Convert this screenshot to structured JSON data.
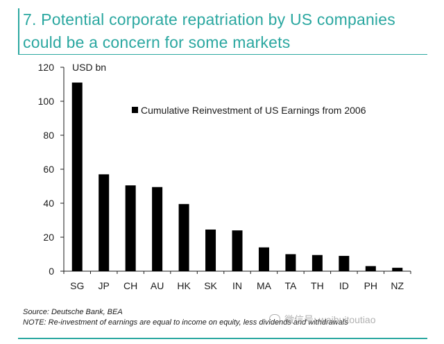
{
  "header": {
    "title_line1": "7. Potential corporate repatriation by US companies",
    "title_line2": "could be a concern for some markets"
  },
  "footer": {
    "source": "Source: Deutsche Bank, BEA",
    "note": "NOTE: Re-investment of earnings are equal to income on equity, less dividends and withdrawals",
    "watermark": "微信号: waibuitoutiao"
  },
  "colors": {
    "accent": "#2aa7a0",
    "bar": "#000000",
    "text": "#1a1a1a"
  },
  "chart_data": {
    "type": "bar",
    "title": "",
    "unit_label": "USD bn",
    "categories": [
      "SG",
      "JP",
      "CH",
      "AU",
      "HK",
      "SK",
      "IN",
      "MA",
      "TA",
      "TH",
      "ID",
      "PH",
      "NZ"
    ],
    "series": [
      {
        "name": "Cumulative Reinvestment of US Earnings from 2006",
        "values": [
          111,
          57,
          50.5,
          49.5,
          39.5,
          24.5,
          24,
          14,
          10,
          9.5,
          9,
          3,
          2
        ]
      }
    ],
    "ylim": [
      0,
      120
    ],
    "yticks": [
      0,
      20,
      40,
      60,
      80,
      100,
      120
    ],
    "grid": false,
    "legend_position": "top-right"
  }
}
